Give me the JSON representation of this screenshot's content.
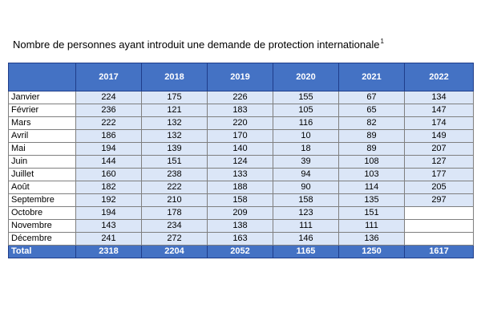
{
  "title": {
    "text": "Nombre de personnes ayant introduit une demande de protection internationale",
    "footnote": "1"
  },
  "table": {
    "years": [
      "2017",
      "2018",
      "2019",
      "2020",
      "2021",
      "2022"
    ],
    "rows": [
      {
        "month": "Janvier",
        "values": [
          "224",
          "175",
          "226",
          "155",
          "67",
          "134"
        ]
      },
      {
        "month": "Février",
        "values": [
          "236",
          "121",
          "183",
          "105",
          "65",
          "147"
        ]
      },
      {
        "month": "Mars",
        "values": [
          "222",
          "132",
          "220",
          "116",
          "82",
          "174"
        ]
      },
      {
        "month": "Avril",
        "values": [
          "186",
          "132",
          "170",
          "10",
          "89",
          "149"
        ]
      },
      {
        "month": "Mai",
        "values": [
          "194",
          "139",
          "140",
          "18",
          "89",
          "207"
        ]
      },
      {
        "month": "Juin",
        "values": [
          "144",
          "151",
          "124",
          "39",
          "108",
          "127"
        ]
      },
      {
        "month": "Juillet",
        "values": [
          "160",
          "238",
          "133",
          "94",
          "103",
          "177"
        ]
      },
      {
        "month": "Août",
        "values": [
          "182",
          "222",
          "188",
          "90",
          "114",
          "205"
        ]
      },
      {
        "month": "Septembre",
        "values": [
          "192",
          "210",
          "158",
          "158",
          "135",
          "297"
        ]
      },
      {
        "month": "Octobre",
        "values": [
          "194",
          "178",
          "209",
          "123",
          "151",
          ""
        ]
      },
      {
        "month": "Novembre",
        "values": [
          "143",
          "234",
          "138",
          "111",
          "111",
          ""
        ]
      },
      {
        "month": "Décembre",
        "values": [
          "241",
          "272",
          "163",
          "146",
          "136",
          ""
        ]
      }
    ],
    "total": {
      "label": "Total",
      "values": [
        "2318",
        "2204",
        "2052",
        "1165",
        "1250",
        "1617"
      ]
    }
  },
  "colors": {
    "header_bg": "#4472c4",
    "cell_bg": "#dbe6f7",
    "border_dark": "#1f3d8a",
    "grid": "#7f7f7f"
  }
}
